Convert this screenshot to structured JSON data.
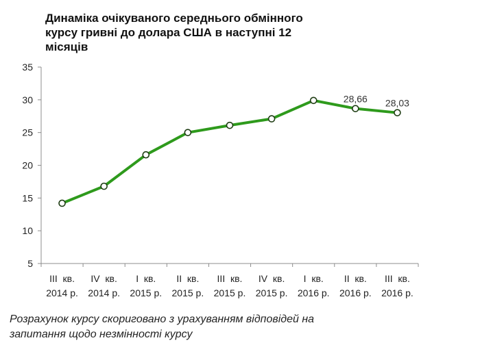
{
  "chart_data": {
    "type": "line",
    "title": "Динаміка очікуваного середнього  обмінного\nкурсу гривні до долара США в наступні 12\nмісяців",
    "categories": [
      "III  кв.\n2014 р.",
      "IV  кв.\n2014 р.",
      "I  кв.\n2015 р.",
      "II  кв.\n2015 р.",
      "III  кв.\n2015 р.",
      "IV  кв.\n2015 р.",
      "I  кв.\n2016 р.",
      "II  кв.\n2016 р.",
      "III  кв.\n2016 р."
    ],
    "series": [
      {
        "values": [
          14.2,
          16.8,
          21.6,
          25.0,
          26.1,
          27.1,
          29.9,
          28.66,
          28.03
        ],
        "data_labels": [
          "",
          "",
          "",
          "",
          "",
          "",
          "",
          "28,66",
          "28,03"
        ]
      }
    ],
    "yticks": [
      "5",
      "10",
      "15",
      "20",
      "25",
      "30",
      "35"
    ],
    "ylim": [
      5,
      35
    ],
    "grid": false,
    "legend": "none",
    "line_color": "#2e9a1c",
    "marker_fill": "#ffffff"
  },
  "footnote": "Розрахунок курсу скориговано з урахуванням відповідей на\nзапитання щодо незмінності курсу"
}
